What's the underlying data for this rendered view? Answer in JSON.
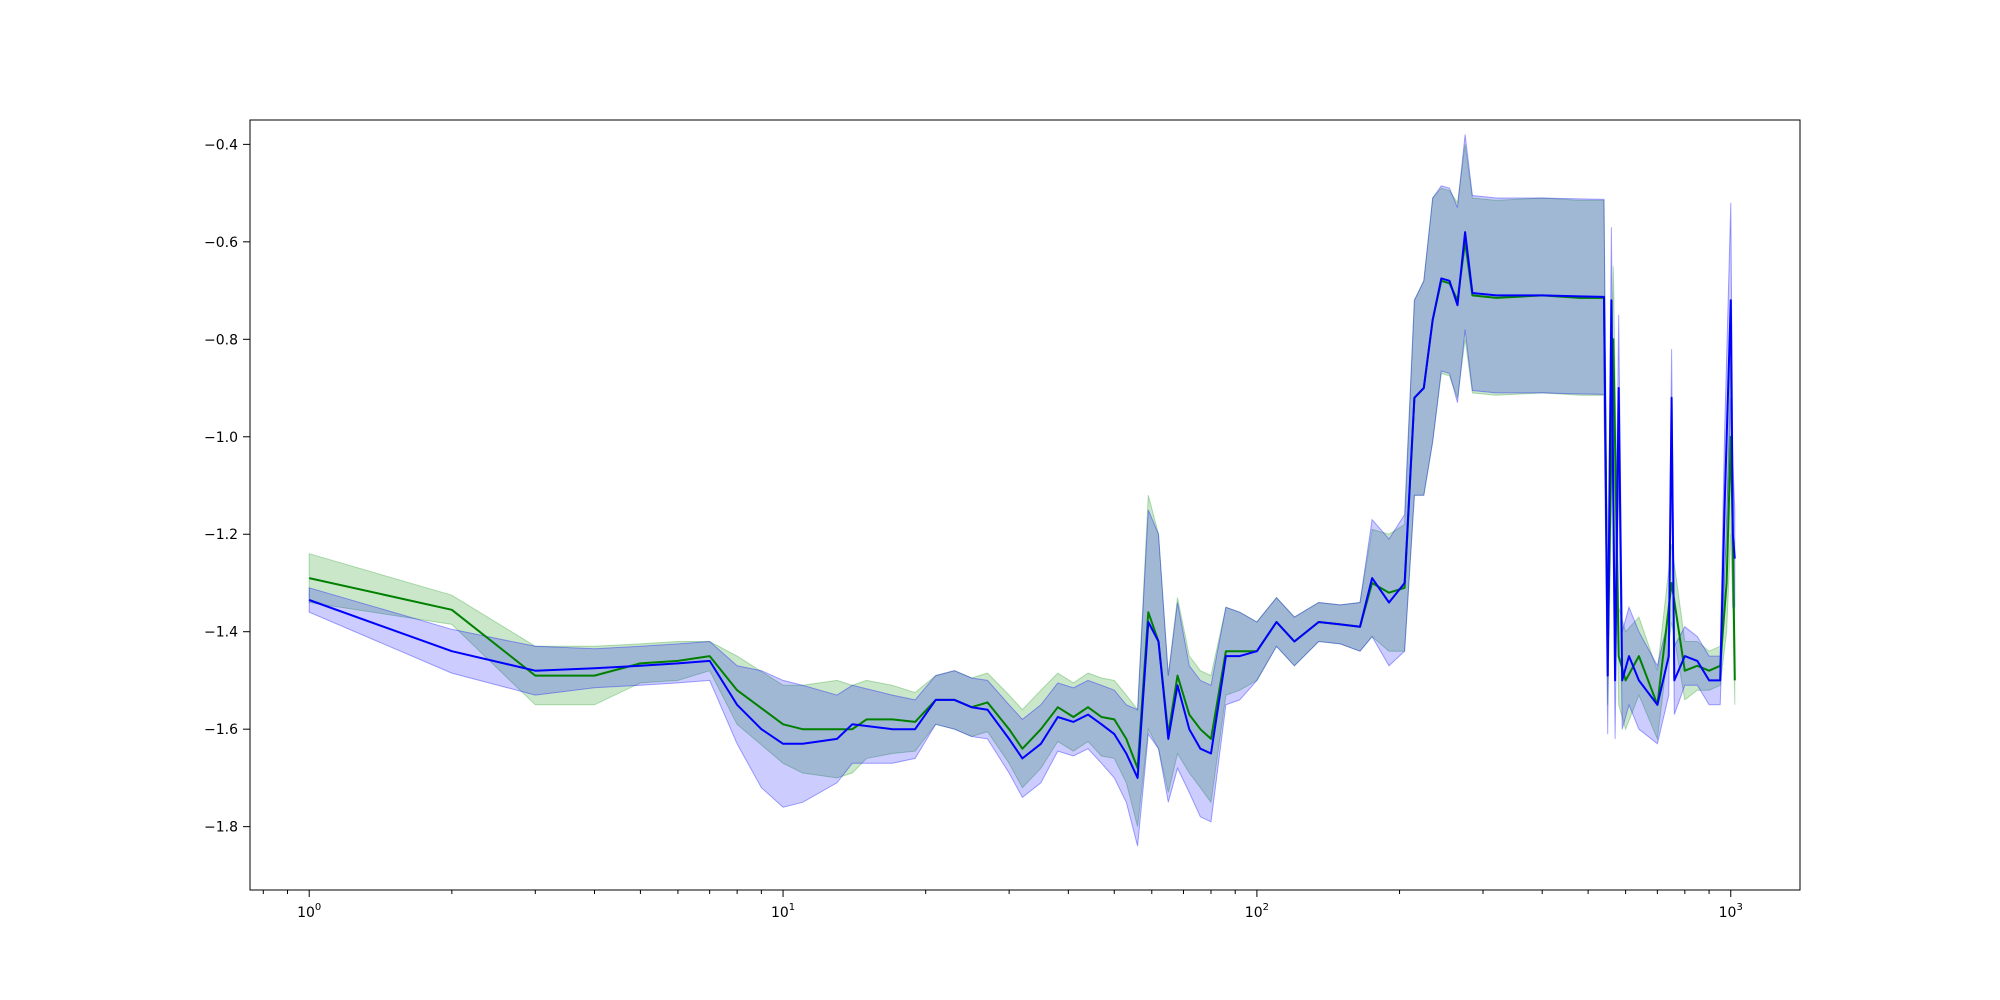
{
  "chart_data": {
    "type": "line",
    "title": "",
    "xlabel": "",
    "ylabel": "",
    "x_scale": "log",
    "xlim": [
      0.75,
      1400
    ],
    "ylim": [
      -1.93,
      -0.35
    ],
    "grid": false,
    "legend": "none",
    "x_ticks": [
      {
        "value": 1,
        "base": "10",
        "exp": "0"
      },
      {
        "value": 10,
        "base": "10",
        "exp": "1"
      },
      {
        "value": 100,
        "base": "10",
        "exp": "2"
      },
      {
        "value": 1000,
        "base": "10",
        "exp": "3"
      }
    ],
    "y_ticks": [
      {
        "value": -0.4,
        "label": "−0.4"
      },
      {
        "value": -0.6,
        "label": "−0.6"
      },
      {
        "value": -0.8,
        "label": "−0.8"
      },
      {
        "value": -1.0,
        "label": "−1.0"
      },
      {
        "value": -1.2,
        "label": "−1.2"
      },
      {
        "value": -1.4,
        "label": "−1.4"
      },
      {
        "value": -1.6,
        "label": "−1.6"
      },
      {
        "value": -1.8,
        "label": "−1.8"
      }
    ],
    "series": [
      {
        "color": "#008000",
        "band_color": "#2ca02c",
        "band_opacity": 0.25,
        "points": [
          [
            1,
            -1.29,
            0.05
          ],
          [
            2,
            -1.355,
            0.03
          ],
          [
            3,
            -1.49,
            0.06
          ],
          [
            4,
            -1.49,
            0.06
          ],
          [
            5,
            -1.465,
            0.04
          ],
          [
            6,
            -1.46,
            0.04
          ],
          [
            7,
            -1.45,
            0.03
          ],
          [
            8,
            -1.52,
            0.07
          ],
          [
            10,
            -1.59,
            0.08
          ],
          [
            11,
            -1.6,
            0.09
          ],
          [
            13,
            -1.6,
            0.1
          ],
          [
            14,
            -1.6,
            0.09
          ],
          [
            15,
            -1.58,
            0.08
          ],
          [
            17,
            -1.58,
            0.07
          ],
          [
            19,
            -1.585,
            0.06
          ],
          [
            21,
            -1.54,
            0.05
          ],
          [
            23,
            -1.54,
            0.06
          ],
          [
            25,
            -1.555,
            0.06
          ],
          [
            27,
            -1.545,
            0.06
          ],
          [
            30,
            -1.6,
            0.07
          ],
          [
            32,
            -1.64,
            0.08
          ],
          [
            35,
            -1.6,
            0.08
          ],
          [
            38,
            -1.555,
            0.07
          ],
          [
            41,
            -1.575,
            0.07
          ],
          [
            44,
            -1.555,
            0.07
          ],
          [
            47,
            -1.575,
            0.08
          ],
          [
            50,
            -1.58,
            0.08
          ],
          [
            53,
            -1.62,
            0.09
          ],
          [
            56,
            -1.68,
            0.12
          ],
          [
            59,
            -1.36,
            0.24
          ],
          [
            62,
            -1.42,
            0.22
          ],
          [
            65,
            -1.61,
            0.12
          ],
          [
            68,
            -1.49,
            0.16
          ],
          [
            72,
            -1.57,
            0.12
          ],
          [
            76,
            -1.6,
            0.12
          ],
          [
            80,
            -1.62,
            0.13
          ],
          [
            86,
            -1.44,
            0.09
          ],
          [
            92,
            -1.44,
            0.08
          ],
          [
            100,
            -1.44,
            0.06
          ],
          [
            110,
            -1.38,
            0.05
          ],
          [
            120,
            -1.42,
            0.05
          ],
          [
            135,
            -1.38,
            0.04
          ],
          [
            150,
            -1.385,
            0.04
          ],
          [
            165,
            -1.39,
            0.05
          ],
          [
            175,
            -1.3,
            0.11
          ],
          [
            190,
            -1.32,
            0.12
          ],
          [
            205,
            -1.31,
            0.13
          ],
          [
            215,
            -0.92,
            0.2
          ],
          [
            225,
            -0.9,
            0.22
          ],
          [
            235,
            -0.76,
            0.25
          ],
          [
            245,
            -0.68,
            0.19
          ],
          [
            255,
            -0.685,
            0.19
          ],
          [
            265,
            -0.72,
            0.2
          ],
          [
            275,
            -0.6,
            0.2
          ],
          [
            285,
            -0.71,
            0.2
          ],
          [
            320,
            -0.715,
            0.2
          ],
          [
            400,
            -0.71,
            0.2
          ],
          [
            480,
            -0.715,
            0.2
          ],
          [
            540,
            -0.715,
            0.2
          ],
          [
            550,
            -1.45,
            0.1
          ],
          [
            565,
            -0.8,
            0.15
          ],
          [
            580,
            -1.45,
            0.1
          ],
          [
            600,
            -1.5,
            0.1
          ],
          [
            640,
            -1.45,
            0.08
          ],
          [
            700,
            -1.55,
            0.07
          ],
          [
            750,
            -1.3,
            0.08
          ],
          [
            800,
            -1.48,
            0.06
          ],
          [
            850,
            -1.47,
            0.05
          ],
          [
            900,
            -1.48,
            0.04
          ],
          [
            950,
            -1.47,
            0.04
          ],
          [
            980,
            -1.3,
            0.1
          ],
          [
            1000,
            -1.0,
            0.2
          ],
          [
            1010,
            -1.2,
            0.15
          ],
          [
            1020,
            -1.5,
            0.05
          ]
        ]
      },
      {
        "color": "#0000ff",
        "band_color": "#0000ff",
        "band_opacity": 0.2,
        "points": [
          [
            1,
            -1.335,
            0.025
          ],
          [
            2,
            -1.44,
            0.045
          ],
          [
            3,
            -1.48,
            0.05
          ],
          [
            4,
            -1.475,
            0.04
          ],
          [
            5,
            -1.47,
            0.04
          ],
          [
            6,
            -1.465,
            0.04
          ],
          [
            7,
            -1.46,
            0.04
          ],
          [
            8,
            -1.55,
            0.08
          ],
          [
            9,
            -1.6,
            0.12
          ],
          [
            10,
            -1.63,
            0.13
          ],
          [
            11,
            -1.63,
            0.12
          ],
          [
            13,
            -1.62,
            0.09
          ],
          [
            14,
            -1.59,
            0.08
          ],
          [
            17,
            -1.6,
            0.07
          ],
          [
            19,
            -1.6,
            0.06
          ],
          [
            21,
            -1.54,
            0.05
          ],
          [
            23,
            -1.54,
            0.06
          ],
          [
            25,
            -1.555,
            0.06
          ],
          [
            27,
            -1.56,
            0.06
          ],
          [
            30,
            -1.62,
            0.07
          ],
          [
            32,
            -1.66,
            0.08
          ],
          [
            35,
            -1.63,
            0.08
          ],
          [
            38,
            -1.575,
            0.07
          ],
          [
            41,
            -1.585,
            0.07
          ],
          [
            44,
            -1.57,
            0.07
          ],
          [
            47,
            -1.59,
            0.08
          ],
          [
            50,
            -1.61,
            0.09
          ],
          [
            53,
            -1.65,
            0.1
          ],
          [
            56,
            -1.7,
            0.14
          ],
          [
            59,
            -1.38,
            0.23
          ],
          [
            62,
            -1.42,
            0.22
          ],
          [
            65,
            -1.62,
            0.13
          ],
          [
            68,
            -1.51,
            0.17
          ],
          [
            72,
            -1.6,
            0.13
          ],
          [
            76,
            -1.64,
            0.14
          ],
          [
            80,
            -1.65,
            0.14
          ],
          [
            86,
            -1.45,
            0.1
          ],
          [
            92,
            -1.45,
            0.09
          ],
          [
            100,
            -1.44,
            0.06
          ],
          [
            110,
            -1.38,
            0.05
          ],
          [
            120,
            -1.42,
            0.05
          ],
          [
            135,
            -1.38,
            0.04
          ],
          [
            150,
            -1.385,
            0.04
          ],
          [
            165,
            -1.39,
            0.05
          ],
          [
            175,
            -1.29,
            0.12
          ],
          [
            190,
            -1.34,
            0.13
          ],
          [
            205,
            -1.3,
            0.14
          ],
          [
            215,
            -0.92,
            0.2
          ],
          [
            225,
            -0.9,
            0.22
          ],
          [
            235,
            -0.76,
            0.25
          ],
          [
            245,
            -0.675,
            0.19
          ],
          [
            255,
            -0.68,
            0.19
          ],
          [
            265,
            -0.73,
            0.2
          ],
          [
            275,
            -0.58,
            0.2
          ],
          [
            285,
            -0.705,
            0.2
          ],
          [
            320,
            -0.71,
            0.2
          ],
          [
            400,
            -0.71,
            0.2
          ],
          [
            480,
            -0.712,
            0.2
          ],
          [
            540,
            -0.713,
            0.2
          ],
          [
            550,
            -1.49,
            0.12
          ],
          [
            560,
            -0.72,
            0.15
          ],
          [
            570,
            -1.5,
            0.12
          ],
          [
            580,
            -0.9,
            0.15
          ],
          [
            590,
            -1.5,
            0.1
          ],
          [
            610,
            -1.45,
            0.1
          ],
          [
            640,
            -1.5,
            0.1
          ],
          [
            700,
            -1.55,
            0.08
          ],
          [
            740,
            -1.45,
            0.08
          ],
          [
            750,
            -0.92,
            0.1
          ],
          [
            760,
            -1.5,
            0.07
          ],
          [
            800,
            -1.45,
            0.06
          ],
          [
            850,
            -1.46,
            0.05
          ],
          [
            900,
            -1.5,
            0.05
          ],
          [
            950,
            -1.5,
            0.05
          ],
          [
            970,
            -1.15,
            0.15
          ],
          [
            1000,
            -0.72,
            0.2
          ],
          [
            1010,
            -1.2,
            0.15
          ],
          [
            1020,
            -1.25,
            0.1
          ]
        ]
      }
    ]
  }
}
